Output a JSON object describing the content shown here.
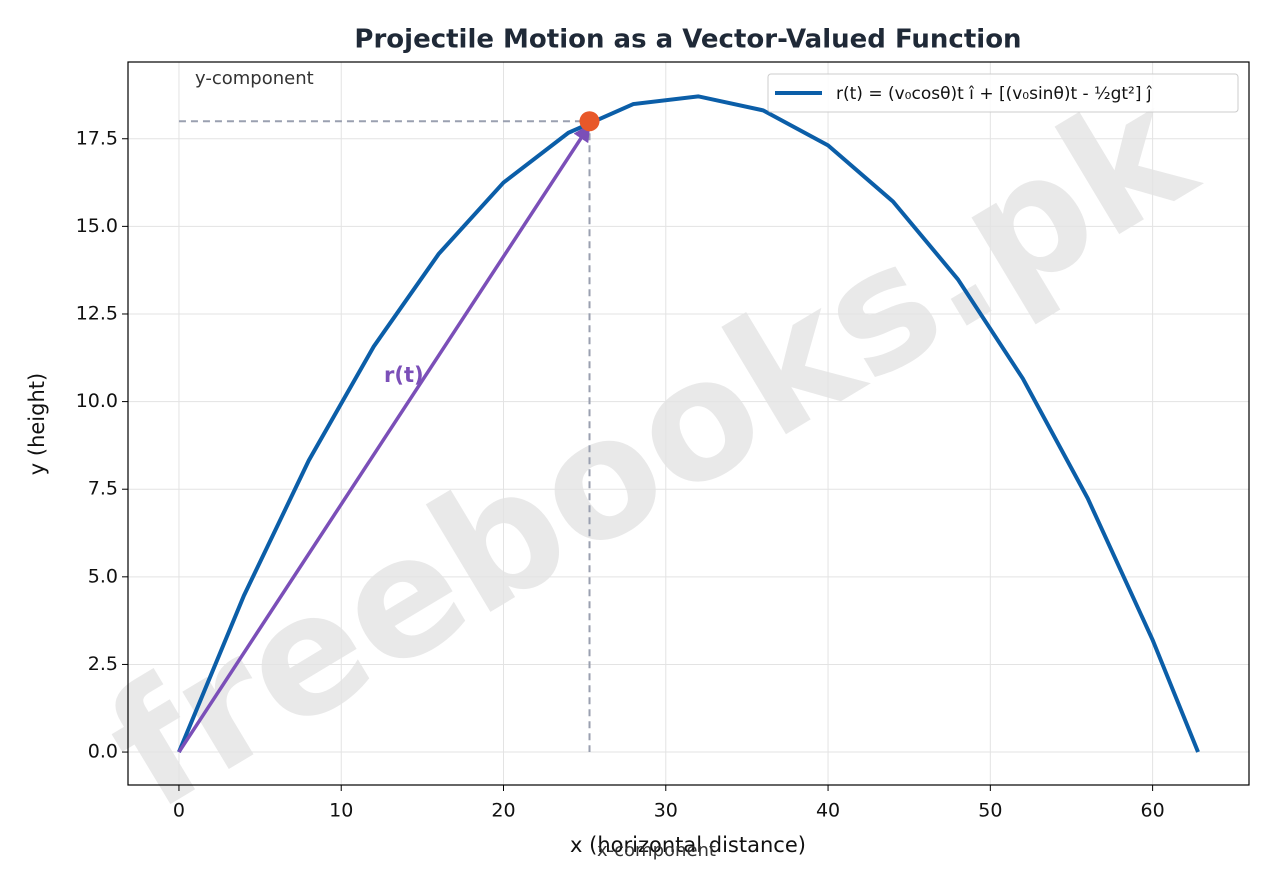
{
  "chart_data": {
    "type": "line",
    "title": "Projectile Motion as a Vector-Valued Function",
    "x_label": "x (horizontal distance)",
    "y_label": "y (height)",
    "x": [
      0,
      4,
      8,
      12,
      16,
      20,
      24,
      28,
      32,
      36,
      40,
      44,
      48,
      52,
      56,
      60,
      62.8
    ],
    "series": [
      {
        "name": "r(t) = (v₀cosθ)t î + [(v₀sinθ)t - ½gt²] ĵ",
        "color": "#0b5ea8",
        "values": [
          0,
          4.46,
          8.32,
          11.57,
          14.21,
          16.25,
          17.67,
          18.49,
          18.71,
          18.31,
          17.31,
          15.71,
          13.49,
          10.66,
          7.24,
          3.2,
          0
        ]
      }
    ],
    "point": {
      "x": 25.3,
      "y": 18.0,
      "color": "#e8582a"
    },
    "vector_label": "r(t)",
    "vector_color": "#7b4fb8",
    "x_component_label": "x-component",
    "y_component_label": "y-component",
    "watermark": "freebooks.pk",
    "xlim": [
      -3.14,
      65.94
    ],
    "ylim": [
      -0.94,
      19.69
    ],
    "xticks": [
      0,
      10,
      20,
      30,
      40,
      50,
      60
    ],
    "yticks": [
      {
        "value": 0,
        "label": "0.0"
      },
      {
        "value": 2.5,
        "label": "2.5"
      },
      {
        "value": 5,
        "label": "5.0"
      },
      {
        "value": 7.5,
        "label": "7.5"
      },
      {
        "value": 10,
        "label": "10.0"
      },
      {
        "value": 12.5,
        "label": "12.5"
      },
      {
        "value": 15,
        "label": "15.0"
      },
      {
        "value": 17.5,
        "label": "17.5"
      }
    ],
    "grid": true,
    "legend": "upper right"
  }
}
